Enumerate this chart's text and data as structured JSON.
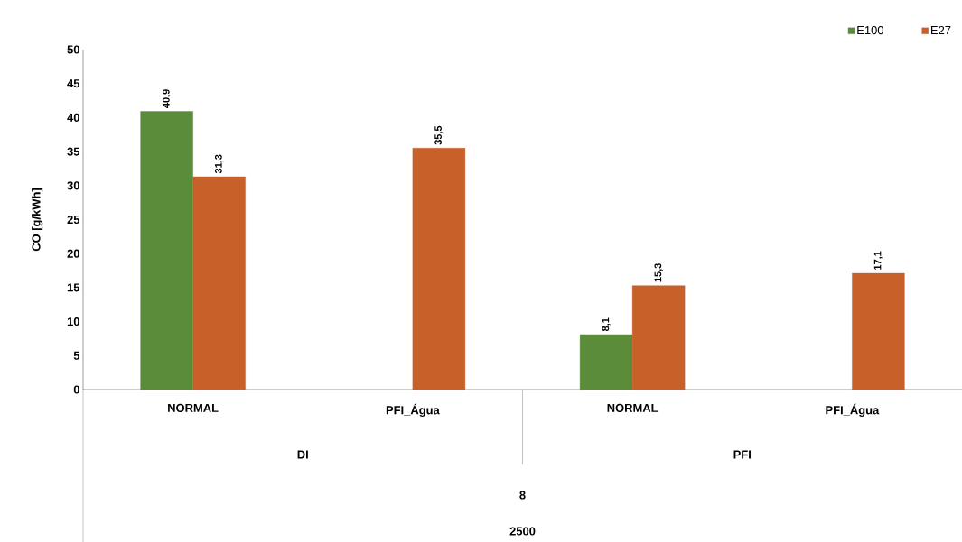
{
  "chart_data": {
    "type": "bar",
    "ylabel": "CO [g/kWh]",
    "categories": [
      "NORMAL",
      "PFI_Água",
      "NORMAL",
      "PFI_Água"
    ],
    "series": [
      {
        "name": "E100",
        "color": "#5b8c3a",
        "values": [
          40.9,
          null,
          8.1,
          null
        ],
        "value_labels": [
          "40,9",
          null,
          "8,1",
          null
        ]
      },
      {
        "name": "E27",
        "color": "#c8602a",
        "values": [
          31.3,
          35.5,
          15.3,
          17.1
        ],
        "value_labels": [
          "31,3",
          "35,5",
          "15,3",
          "17,1"
        ]
      }
    ],
    "ylim": [
      0,
      50
    ],
    "yticks": [
      0,
      5,
      10,
      15,
      20,
      25,
      30,
      35,
      40,
      45,
      50
    ],
    "legend": "top right",
    "grid": false,
    "annotations": [
      "DI",
      "PFI",
      "8",
      "2500"
    ]
  }
}
